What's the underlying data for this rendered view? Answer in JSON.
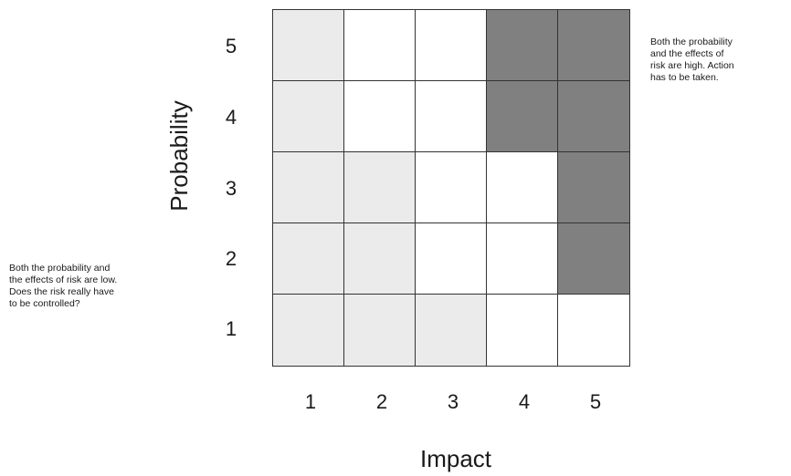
{
  "y_axis": {
    "label": "Probability",
    "ticks": [
      "5",
      "4",
      "3",
      "2",
      "1"
    ]
  },
  "x_axis": {
    "label": "Impact",
    "ticks": [
      "1",
      "2",
      "3",
      "4",
      "5"
    ]
  },
  "matrix": {
    "rows": [
      {
        "probability": "5",
        "cells": [
          "low",
          "mid",
          "mid",
          "high",
          "high"
        ]
      },
      {
        "probability": "4",
        "cells": [
          "low",
          "mid",
          "mid",
          "high",
          "high"
        ]
      },
      {
        "probability": "3",
        "cells": [
          "low",
          "low",
          "mid",
          "mid",
          "high"
        ]
      },
      {
        "probability": "2",
        "cells": [
          "low",
          "low",
          "mid",
          "mid",
          "high"
        ]
      },
      {
        "probability": "1",
        "cells": [
          "low",
          "low",
          "low",
          "mid",
          "mid"
        ]
      }
    ],
    "colors": {
      "low": "#ebebeb",
      "mid": "#ffffff",
      "high": "#808080",
      "grid": "#333333"
    }
  },
  "notes": {
    "high_risk": "Both the probability\nand the effects of\nrisk are high. Action\nhas to be taken.",
    "low_risk": "Both the probability and\nthe effects of risk are low.\nDoes the risk really have\nto be controlled?"
  }
}
